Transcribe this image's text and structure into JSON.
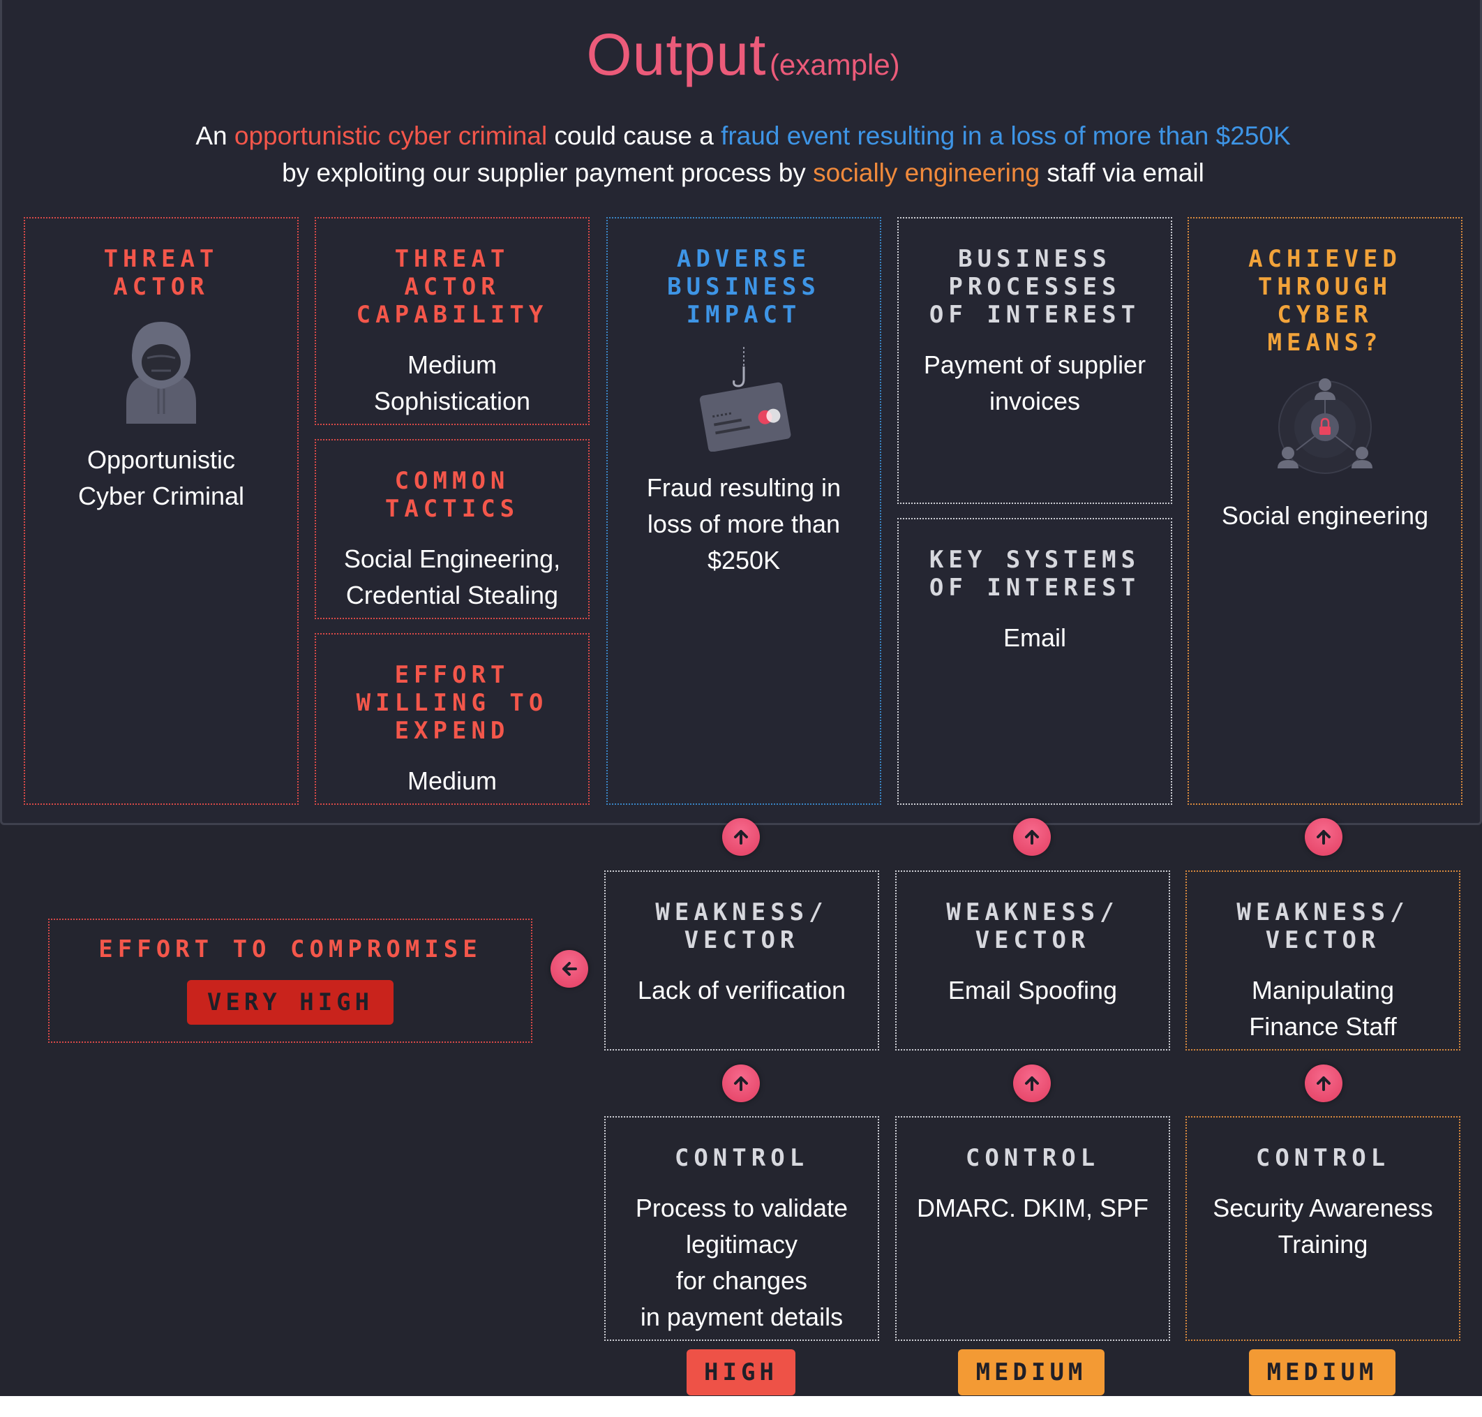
{
  "title": {
    "main": "Output",
    "sub": "(example)"
  },
  "summary": {
    "p1": "An ",
    "actor": "opportunistic cyber criminal",
    "p2": " could cause a ",
    "impact": "fraud event resulting in a loss of more than $250K",
    "p3": "by exploiting our supplier payment process by ",
    "means": "socially engineering",
    "p4": " staff via email"
  },
  "threat_actor": {
    "label": "THREAT\nACTOR",
    "value": "Opportunistic\nCyber Criminal",
    "icon": "hooded-hacker-icon"
  },
  "capability": {
    "label": "THREAT\nACTOR\nCAPABILITY",
    "value": "Medium\nSophistication"
  },
  "tactics": {
    "label": "COMMON\nTACTICS",
    "value": "Social Engineering,\nCredential Stealing"
  },
  "effort": {
    "label": "EFFORT\nWILLING TO\nEXPEND",
    "value": "Medium"
  },
  "impact": {
    "label": "ADVERSE\nBUSINESS\nIMPACT",
    "value": "Fraud resulting in\nloss of more than\n$250K",
    "icon": "phishing-card-icon"
  },
  "processes": {
    "label": "BUSINESS\nPROCESSES\nOF INTEREST",
    "value": "Payment of supplier\ninvoices"
  },
  "systems": {
    "label": "KEY SYSTEMS\nOF INTEREST",
    "value": "Email"
  },
  "means": {
    "label": "ACHIEVED\nTHROUGH\nCYBER\nMEANS?",
    "value": "Social engineering",
    "icon": "social-network-lock-icon"
  },
  "compromise": {
    "label": "EFFORT TO COMPROMISE",
    "badge": "VERY HIGH"
  },
  "weaknesses": [
    {
      "label": "WEAKNESS/\nVECTOR",
      "value": "Lack of verification"
    },
    {
      "label": "WEAKNESS/\nVECTOR",
      "value": "Email Spoofing"
    },
    {
      "label": "WEAKNESS/\nVECTOR",
      "value": "Manipulating\nFinance Staff"
    }
  ],
  "controls": [
    {
      "label": "CONTROL",
      "value": "Process to validate\nlegitimacy\nfor changes\nin payment details",
      "rating": "HIGH"
    },
    {
      "label": "CONTROL",
      "value": "DMARC. DKIM, SPF",
      "rating": "MEDIUM"
    },
    {
      "label": "CONTROL",
      "value": "Security Awareness\nTraining",
      "rating": "MEDIUM"
    }
  ],
  "colors": {
    "high": "#ee5247",
    "medium": "#f39a34",
    "very_high": "#c9231c",
    "accent": "#ec5b7a"
  }
}
